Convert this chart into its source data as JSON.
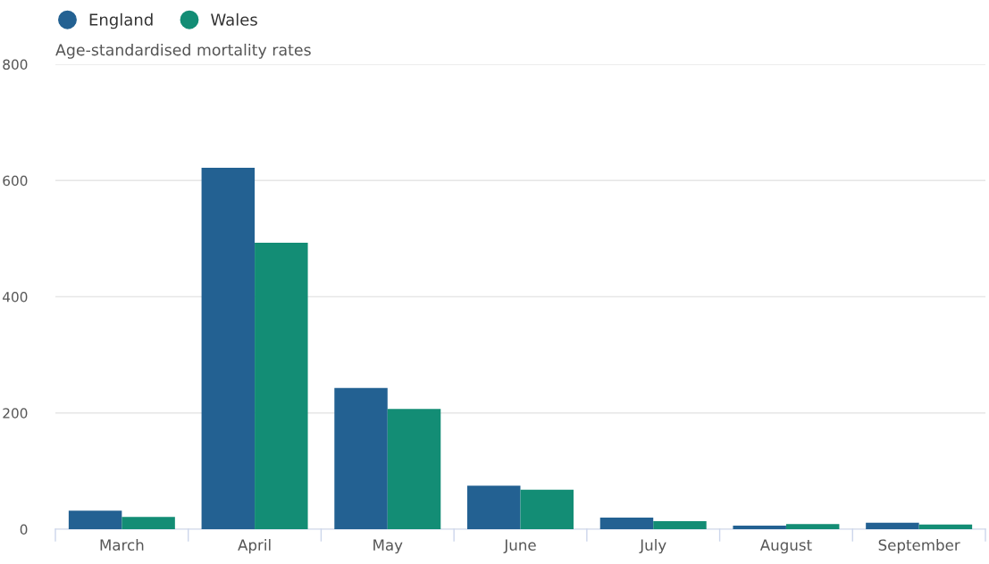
{
  "chart_data": {
    "type": "bar",
    "ylabel": "Age-standardised mortality rates",
    "categories": [
      "March",
      "April",
      "May",
      "June",
      "July",
      "August",
      "September"
    ],
    "series": [
      {
        "name": "England",
        "color": "#236192",
        "values": [
          32,
          622,
          243,
          75,
          20,
          6,
          11
        ]
      },
      {
        "name": "Wales",
        "color": "#138d75",
        "values": [
          21,
          493,
          207,
          68,
          14,
          9,
          8
        ]
      }
    ],
    "ylim": [
      0,
      800
    ],
    "yticks": [
      0,
      200,
      400,
      600,
      800
    ],
    "grid": "y",
    "legend": "top left"
  }
}
